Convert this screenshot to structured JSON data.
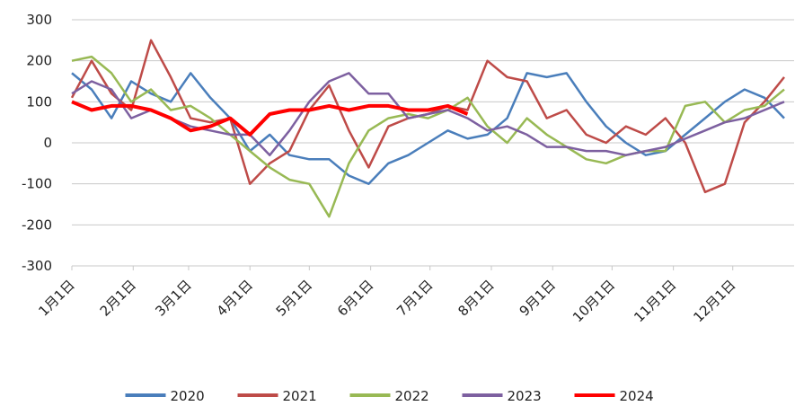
{
  "chart_data": {
    "type": "line",
    "x": [
      1,
      11,
      21,
      31,
      41,
      51,
      61,
      71,
      81,
      91,
      101,
      111,
      121,
      131,
      141,
      151,
      161,
      171,
      181,
      191,
      201,
      211,
      221,
      231,
      241,
      251,
      261,
      271,
      281,
      291,
      301,
      311,
      321,
      331,
      341,
      351,
      361
    ],
    "xlim": [
      1,
      366
    ],
    "xticks": [
      {
        "value": 1,
        "label": "1月1日"
      },
      {
        "value": 32,
        "label": "2月1日"
      },
      {
        "value": 60,
        "label": "3月1日"
      },
      {
        "value": 91,
        "label": "4月1日"
      },
      {
        "value": 121,
        "label": "5月1日"
      },
      {
        "value": 152,
        "label": "6月1日"
      },
      {
        "value": 182,
        "label": "7月1日"
      },
      {
        "value": 213,
        "label": "8月1日"
      },
      {
        "value": 244,
        "label": "9月1日"
      },
      {
        "value": 274,
        "label": "10月1日"
      },
      {
        "value": 305,
        "label": "11月1日"
      },
      {
        "value": 335,
        "label": "12月1日"
      }
    ],
    "ylim": [
      -300,
      300
    ],
    "yticks": [
      300,
      200,
      100,
      0,
      -100,
      -200,
      -300
    ],
    "grid": true,
    "legend": "bottom",
    "series": [
      {
        "name": "2020",
        "color": "#4a7ebb",
        "values": [
          170,
          130,
          60,
          150,
          120,
          100,
          170,
          110,
          60,
          -20,
          20,
          -30,
          -40,
          -40,
          -80,
          -100,
          -50,
          -30,
          0,
          30,
          10,
          20,
          60,
          170,
          160,
          170,
          100,
          40,
          0,
          -30,
          -20,
          20,
          60,
          100,
          130,
          110,
          60
        ]
      },
      {
        "name": "2021",
        "color": "#be4b48",
        "values": [
          110,
          200,
          120,
          80,
          250,
          160,
          60,
          50,
          60,
          -100,
          -50,
          -20,
          80,
          140,
          30,
          -60,
          40,
          60,
          70,
          90,
          80,
          200,
          160,
          150,
          60,
          80,
          20,
          0,
          40,
          20,
          60,
          0,
          -120,
          -100,
          50,
          100,
          160
        ]
      },
      {
        "name": "2022",
        "color": "#98b954",
        "values": [
          200,
          210,
          170,
          100,
          130,
          80,
          90,
          60,
          20,
          -20,
          -60,
          -90,
          -100,
          -180,
          -50,
          30,
          60,
          70,
          60,
          80,
          110,
          40,
          0,
          60,
          20,
          -10,
          -40,
          -50,
          -30,
          -20,
          -20,
          90,
          100,
          50,
          80,
          90,
          130
        ]
      },
      {
        "name": "2023",
        "color": "#7d60a0",
        "values": [
          120,
          150,
          130,
          60,
          80,
          60,
          40,
          30,
          20,
          20,
          -30,
          30,
          100,
          150,
          170,
          120,
          120,
          60,
          70,
          80,
          60,
          30,
          40,
          20,
          -10,
          -10,
          -20,
          -20,
          -30,
          -20,
          -10,
          10,
          30,
          50,
          60,
          80,
          100
        ]
      },
      {
        "name": "2024",
        "color": "#ff0000",
        "width": 4,
        "values": [
          100,
          80,
          90,
          90,
          80,
          60,
          30,
          40,
          60,
          20,
          70,
          80,
          80,
          90,
          80,
          90,
          90,
          80,
          80,
          90,
          70,
          null,
          null,
          null,
          null,
          null,
          null,
          null,
          null,
          null,
          null,
          null,
          null,
          null,
          null,
          null,
          null
        ]
      }
    ]
  }
}
